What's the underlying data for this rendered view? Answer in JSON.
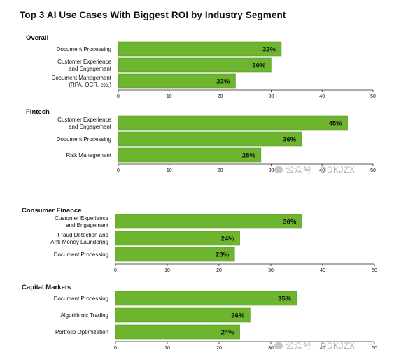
{
  "title": "Top 3 AI Use Cases With Biggest ROI by Industry Segment",
  "watermark": "公众号 · DDKJZX",
  "colors": {
    "bar": "#6eb52f",
    "bar_border": "#5a9a26",
    "axis": "#222222",
    "text": "#111111"
  },
  "chart_data": [
    {
      "type": "bar",
      "orientation": "horizontal",
      "title": "Overall",
      "categories": [
        "Document Processing",
        "Customer Experience\nand Engagement",
        "Document Management\n(RPA, OCR, etc.)"
      ],
      "values": [
        32,
        30,
        23
      ],
      "value_labels": [
        "32%",
        "30%",
        "23%"
      ],
      "xlim": [
        0,
        50
      ],
      "ticks": [
        0,
        10,
        20,
        30,
        40,
        50
      ],
      "tick_labels": [
        "0",
        "10",
        "20",
        "30",
        "40",
        "50"
      ]
    },
    {
      "type": "bar",
      "orientation": "horizontal",
      "title": "Fintech",
      "categories": [
        "Customer Experience\nand Engagement",
        "Document Processing",
        "Risk Management"
      ],
      "values": [
        45,
        36,
        28
      ],
      "value_labels": [
        "45%",
        "36%",
        "28%"
      ],
      "xlim": [
        0,
        50
      ],
      "ticks": [
        0,
        10,
        20,
        30,
        40,
        50
      ],
      "tick_labels": [
        "0",
        "10",
        "20",
        "30",
        "40",
        "50"
      ]
    },
    {
      "type": "bar",
      "orientation": "horizontal",
      "title": "Consumer Finance",
      "categories": [
        "Customer Experience\nand Engagement",
        "Fraud Detection and\nAnti-Money Laundering",
        "Document Processing"
      ],
      "values": [
        36,
        24,
        23
      ],
      "value_labels": [
        "36%",
        "24%",
        "23%"
      ],
      "xlim": [
        0,
        50
      ],
      "ticks": [
        0,
        10,
        20,
        30,
        40,
        50
      ],
      "tick_labels": [
        "0",
        "10",
        "20",
        "30",
        "40",
        "50"
      ]
    },
    {
      "type": "bar",
      "orientation": "horizontal",
      "title": "Capital Markets",
      "categories": [
        "Document Processing",
        "Algorithmic Trading",
        "Portfolio Optimization"
      ],
      "values": [
        35,
        26,
        24
      ],
      "value_labels": [
        "35%",
        "26%",
        "24%"
      ],
      "xlim": [
        0,
        50
      ],
      "ticks": [
        0,
        10,
        20,
        30,
        40,
        50
      ],
      "tick_labels": [
        "0",
        "10",
        "20",
        "30",
        "40",
        "50"
      ]
    }
  ]
}
